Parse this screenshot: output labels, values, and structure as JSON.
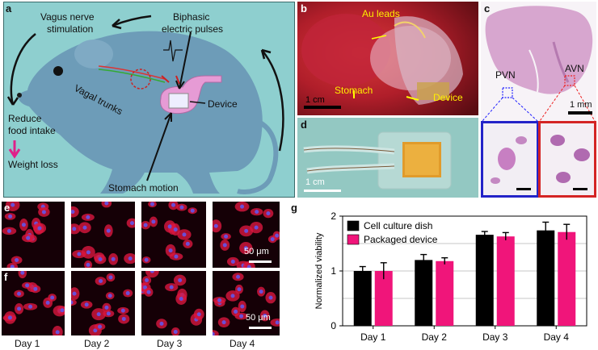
{
  "panel_a": {
    "letter": "a",
    "vagus_label_line1": "Vagus nerve",
    "vagus_label_line2": "stimulation",
    "pulses_label_line1": "Biphasic",
    "pulses_label_line2": "electric pulses",
    "trunks_label": "Vagal trunks",
    "device_label": "Device",
    "reduce_label_line1": "Reduce",
    "reduce_label_line2": "food intake",
    "weight_label": "Weight loss",
    "motion_label": "Stomach motion",
    "background_color": "#8ecfcf",
    "mouse_color": "#6d9cb8"
  },
  "panel_b": {
    "letter": "b",
    "au_label": "Au leads",
    "stomach_label": "Stomach",
    "device_label": "Device",
    "scale_label": "1 cm"
  },
  "panel_c": {
    "letter": "c",
    "pvn_label": "PVN",
    "avn_label": "AVN",
    "scale_label": "1 mm"
  },
  "panel_d": {
    "letter": "d",
    "scale_label": "1 cm"
  },
  "panel_e": {
    "letter": "e",
    "scale_label": "50 μm"
  },
  "panel_f": {
    "letter": "f",
    "scale_label": "50 μm",
    "day_labels": [
      "Day 1",
      "Day 2",
      "Day 3",
      "Day 4"
    ]
  },
  "panel_g": {
    "letter": "g"
  },
  "chart_data": {
    "type": "bar",
    "title": "",
    "xlabel": "",
    "ylabel": "Normalized viability",
    "categories": [
      "Day 1",
      "Day 2",
      "Day 3",
      "Day 4"
    ],
    "series": [
      {
        "name": "Cell culture dish",
        "color": "#000000",
        "values": [
          1.0,
          1.2,
          1.66,
          1.74
        ],
        "errors": [
          0.08,
          0.1,
          0.06,
          0.15
        ]
      },
      {
        "name": "Packaged device",
        "color": "#f0157a",
        "values": [
          1.0,
          1.18,
          1.63,
          1.71
        ],
        "errors": [
          0.15,
          0.06,
          0.07,
          0.14
        ]
      }
    ],
    "ylim": [
      0,
      2
    ],
    "yticks": [
      0,
      1,
      2
    ],
    "grid": true,
    "legend_position": "top-left"
  }
}
